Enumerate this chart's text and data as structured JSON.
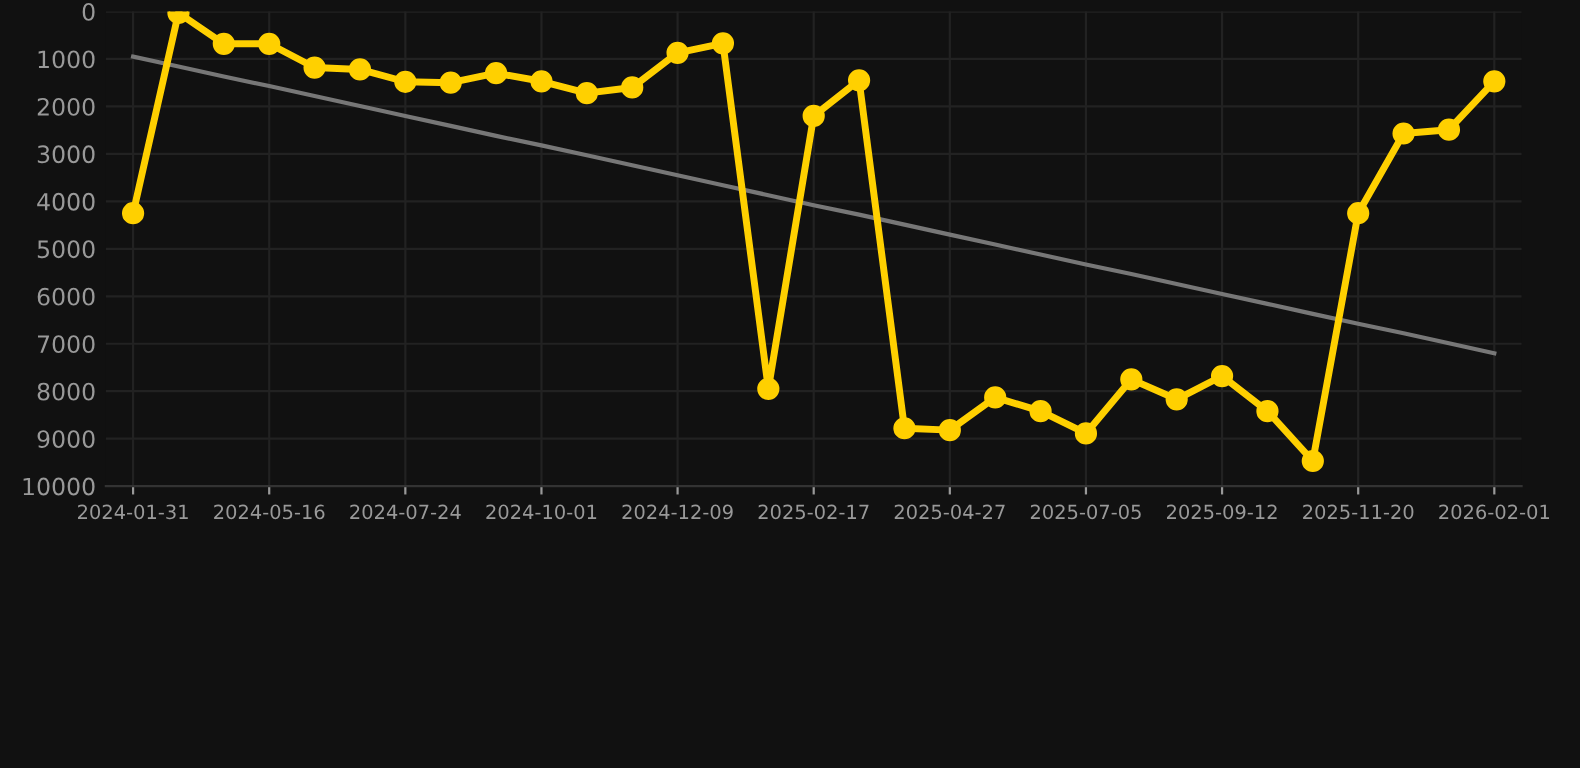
{
  "chart_data": {
    "type": "line",
    "categories": [
      "2024-01-31",
      null,
      null,
      "2024-05-16",
      null,
      null,
      "2024-07-24",
      null,
      null,
      "2024-10-01",
      null,
      null,
      "2024-12-09",
      null,
      null,
      "2025-02-17",
      null,
      null,
      "2025-04-27",
      null,
      null,
      "2025-07-05",
      null,
      null,
      "2025-09-12",
      null,
      null,
      "2025-11-20",
      null,
      null,
      "2026-02-01"
    ],
    "series": [
      {
        "color": "#ffd000",
        "marker": "circle",
        "values": [
          4250,
          30,
          680,
          680,
          1180,
          1220,
          1480,
          1500,
          1300,
          1470,
          1720,
          1600,
          870,
          670,
          7950,
          2200,
          1450,
          8780,
          8820,
          8130,
          8420,
          8890,
          7750,
          8170,
          7680,
          8420,
          9470,
          4250,
          2570,
          2490,
          1470
        ]
      },
      {
        "type": "line",
        "color": "#777777",
        "marker": "none",
        "values": [
          950,
          1160,
          1370,
          1570,
          1780,
          1990,
          2200,
          2410,
          2620,
          2820,
          3030,
          3240,
          3450,
          3660,
          3870,
          4080,
          4280,
          4490,
          4700,
          4910,
          5120,
          5330,
          5530,
          5740,
          5950,
          6160,
          6370,
          6580,
          6780,
          6990,
          7200
        ]
      }
    ],
    "ylim": [
      10000,
      0
    ],
    "yticks": [
      0,
      1000,
      2000,
      3000,
      4000,
      5000,
      6000,
      7000,
      8000,
      9000,
      10000
    ],
    "grid": true,
    "legend": false
  }
}
